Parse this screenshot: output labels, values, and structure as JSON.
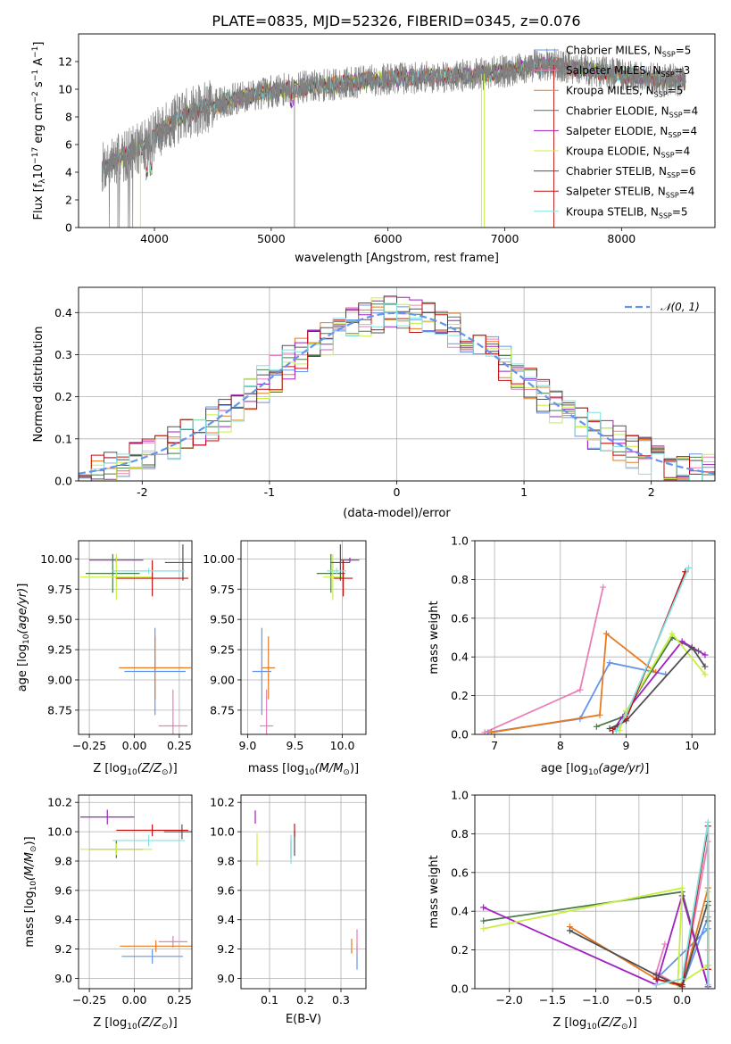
{
  "title": "PLATE=0835, MJD=52326, FIBERID=0345, z=0.076",
  "colors": {
    "grid": "#b0b0b0",
    "spectrum": "#808080",
    "normal_curve": "#6495ed"
  },
  "models": [
    {
      "key": "chabrier_miles",
      "legend": "Chabrier MILES, N",
      "nssp": "=5",
      "color": "#6495ed"
    },
    {
      "key": "salpeter_miles",
      "legend": "Salpeter MILES, N",
      "nssp": "=3",
      "color": "#e87fba"
    },
    {
      "key": "kroupa_miles",
      "legend": "Kroupa MILES, N",
      "nssp": "=5",
      "color": "#e67a20"
    },
    {
      "key": "chabrier_elodie",
      "legend": "Chabrier ELODIE, N",
      "nssp": "=4",
      "color": "#4a7a4a"
    },
    {
      "key": "salpeter_elodie",
      "legend": "Salpeter ELODIE, N",
      "nssp": "=4",
      "color": "#a020c0"
    },
    {
      "key": "kroupa_elodie",
      "legend": "Kroupa ELODIE, N",
      "nssp": "=4",
      "color": "#c8f040"
    },
    {
      "key": "chabrier_stelib",
      "legend": "Chabrier STELIB, N",
      "nssp": "=6",
      "color": "#505050"
    },
    {
      "key": "salpeter_stelib",
      "legend": "Salpeter STELIB, N",
      "nssp": "=4",
      "color": "#c01010"
    },
    {
      "key": "kroupa_stelib",
      "legend": "Kroupa STELIB, N",
      "nssp": "=5",
      "color": "#80e0e0"
    }
  ],
  "legend_subscript": "SSP",
  "chart_data": [
    {
      "id": "spectrum",
      "type": "line",
      "xlabel": "wavelength [Angstrom, rest frame]",
      "ylabel": "Flux [f",
      "ylabel_parts": [
        "Flux [f",
        "λ",
        "10",
        "−17",
        " erg cm",
        "−2",
        " s",
        "−1",
        " A",
        "−1",
        "]"
      ],
      "xlim": [
        3350,
        8800
      ],
      "ylim": [
        0,
        14
      ],
      "xticks": [
        4000,
        5000,
        6000,
        7000,
        8000
      ],
      "yticks": [
        0,
        2,
        4,
        6,
        8,
        10,
        12
      ],
      "continuum_x": [
        3550,
        3700,
        3900,
        4100,
        4300,
        4600,
        4900,
        5200,
        5500,
        5800,
        6100,
        6400,
        6700,
        7000,
        7200,
        7400,
        7600,
        7800,
        8000,
        8200,
        8400,
        8550
      ],
      "continuum_y": [
        4.3,
        5.0,
        5.9,
        7.3,
        8.3,
        9.1,
        9.7,
        10.1,
        10.3,
        10.6,
        10.8,
        10.9,
        11.0,
        11.3,
        11.6,
        11.8,
        11.5,
        11.3,
        11.0,
        10.9,
        10.7,
        10.6
      ],
      "spectrum_x_range": [
        3550,
        8550
      ],
      "legend": "upper right"
    },
    {
      "id": "residuals",
      "type": "histogram",
      "xlabel": "(data-model)/error",
      "ylabel": "Normed distribution",
      "xlim": [
        -2.5,
        2.5
      ],
      "ylim": [
        0,
        0.46
      ],
      "xticks": [
        -2,
        -1,
        0,
        1,
        2
      ],
      "yticks": [
        0.0,
        0.1,
        0.2,
        0.3,
        0.4
      ],
      "bin_width": 0.1,
      "grid": true,
      "legend_label": "𝒩(0, 1)",
      "normal": {
        "mu": 0,
        "sigma": 1
      }
    },
    {
      "id": "age_vs_Z",
      "type": "errorbar",
      "xlabel": "Z [log",
      "ylabel": "age  [log",
      "xlim": [
        -0.31,
        0.32
      ],
      "ylim": [
        8.55,
        10.15
      ],
      "xticks": [
        -0.25,
        0.0,
        0.25
      ],
      "xticklabels": [
        "−0.25",
        "0.00",
        "0.25"
      ],
      "yticks": [
        8.75,
        9.0,
        9.25,
        9.5,
        9.75,
        10.0
      ],
      "points": [
        {
          "m": 0,
          "x": 0.115,
          "y": 9.07,
          "xe": 0.17,
          "ye": 0.72
        },
        {
          "m": 1,
          "x": 0.215,
          "y": 8.62,
          "xe": 0.08,
          "ye": 0.6
        },
        {
          "m": 2,
          "x": 0.115,
          "y": 9.1,
          "xe": 0.2,
          "ye": 0.52
        },
        {
          "m": 3,
          "x": -0.12,
          "y": 9.88,
          "xe": 0.15,
          "ye": 0.32
        },
        {
          "m": 4,
          "x": -0.1,
          "y": 9.99,
          "xe": 0.15,
          "ye": 0.04
        },
        {
          "m": 5,
          "x": -0.1,
          "y": 9.85,
          "xe": 0.2,
          "ye": 0.38
        },
        {
          "m": 6,
          "x": 0.27,
          "y": 9.97,
          "xe": 0.1,
          "ye": 0.3
        },
        {
          "m": 7,
          "x": 0.1,
          "y": 9.84,
          "xe": 0.2,
          "ye": 0.3
        },
        {
          "m": 8,
          "x": 0.08,
          "y": 9.9,
          "xe": 0.2,
          "ye": 0.05
        }
      ]
    },
    {
      "id": "age_vs_mass",
      "type": "errorbar",
      "xlabel": "mass [log",
      "xlim": [
        8.93,
        10.25
      ],
      "ylim": [
        8.55,
        10.15
      ],
      "xticks": [
        9.0,
        9.5,
        10.0
      ],
      "yticks": [
        8.75,
        9.0,
        9.25,
        9.5,
        9.75,
        10.0
      ],
      "points": [
        {
          "m": 0,
          "x": 9.15,
          "y": 9.07,
          "xe": 0.1,
          "ye": 0.72
        },
        {
          "m": 1,
          "x": 9.2,
          "y": 8.62,
          "xe": 0.07,
          "ye": 0.6
        },
        {
          "m": 2,
          "x": 9.22,
          "y": 9.1,
          "xe": 0.07,
          "ye": 0.52
        },
        {
          "m": 3,
          "x": 9.88,
          "y": 9.88,
          "xe": 0.15,
          "ye": 0.32
        },
        {
          "m": 4,
          "x": 10.08,
          "y": 9.99,
          "xe": 0.1,
          "ye": 0.04
        },
        {
          "m": 5,
          "x": 9.9,
          "y": 9.85,
          "xe": 0.1,
          "ye": 0.38
        },
        {
          "m": 6,
          "x": 9.98,
          "y": 9.97,
          "xe": 0.1,
          "ye": 0.3
        },
        {
          "m": 7,
          "x": 10.01,
          "y": 9.84,
          "xe": 0.1,
          "ye": 0.3
        },
        {
          "m": 8,
          "x": 9.94,
          "y": 9.9,
          "xe": 0.1,
          "ye": 0.05
        }
      ]
    },
    {
      "id": "weight_vs_age",
      "type": "line",
      "xlabel": "age  [log",
      "ylabel": "mass weight",
      "xlim": [
        6.7,
        10.35
      ],
      "ylim": [
        0,
        1.0
      ],
      "xticks": [
        7,
        8,
        9,
        10
      ],
      "yticks": [
        0.0,
        0.2,
        0.4,
        0.6,
        0.8,
        1.0
      ],
      "grid": true,
      "series": [
        {
          "m": 0,
          "x": [
            6.9,
            8.3,
            8.75,
            9.6
          ],
          "y": [
            0.01,
            0.08,
            0.37,
            0.31
          ]
        },
        {
          "m": 1,
          "x": [
            6.85,
            8.3,
            8.65
          ],
          "y": [
            0.01,
            0.23,
            0.76
          ]
        },
        {
          "m": 2,
          "x": [
            6.95,
            8.6,
            8.7,
            9.45
          ],
          "y": [
            0.01,
            0.1,
            0.52,
            0.32
          ]
        },
        {
          "m": 3,
          "x": [
            8.55,
            8.95,
            9.7,
            10.1
          ],
          "y": [
            0.04,
            0.09,
            0.5,
            0.43
          ]
        },
        {
          "m": 4,
          "x": [
            8.8,
            9.0,
            9.85,
            10.2
          ],
          "y": [
            0.02,
            0.12,
            0.48,
            0.41
          ]
        },
        {
          "m": 5,
          "x": [
            8.9,
            9.0,
            9.7,
            10.2
          ],
          "y": [
            0.02,
            0.12,
            0.52,
            0.31
          ]
        },
        {
          "m": 6,
          "x": [
            8.75,
            9.0,
            10.0,
            10.2
          ],
          "y": [
            0.03,
            0.07,
            0.45,
            0.35
          ]
        },
        {
          "m": 7,
          "x": [
            8.8,
            9.0,
            9.9
          ],
          "y": [
            0.02,
            0.08,
            0.84
          ]
        },
        {
          "m": 8,
          "x": [
            8.85,
            9.0,
            9.95
          ],
          "y": [
            0.02,
            0.1,
            0.86
          ]
        }
      ]
    },
    {
      "id": "mass_vs_Z",
      "type": "errorbar",
      "xlabel": "Z [log",
      "ylabel": "mass [log",
      "xlim": [
        -0.31,
        0.32
      ],
      "ylim": [
        8.93,
        10.25
      ],
      "xticks": [
        -0.25,
        0.0,
        0.25
      ],
      "xticklabels": [
        "−0.25",
        "0.00",
        "0.25"
      ],
      "yticks": [
        9.0,
        9.2,
        9.4,
        9.6,
        9.8,
        10.0,
        10.2
      ],
      "points": [
        {
          "m": 0,
          "x": 0.1,
          "y": 9.15,
          "xe": 0.17,
          "ye": 0.1
        },
        {
          "m": 1,
          "x": 0.215,
          "y": 9.25,
          "xe": 0.08,
          "ye": 0.08
        },
        {
          "m": 2,
          "x": 0.12,
          "y": 9.22,
          "xe": 0.2,
          "ye": 0.08
        },
        {
          "m": 3,
          "x": -0.1,
          "y": 9.88,
          "xe": 0.15,
          "ye": 0.12
        },
        {
          "m": 4,
          "x": -0.15,
          "y": 10.1,
          "xe": 0.15,
          "ye": 0.1
        },
        {
          "m": 5,
          "x": -0.1,
          "y": 9.88,
          "xe": 0.2,
          "ye": 0.08
        },
        {
          "m": 6,
          "x": 0.265,
          "y": 10.0,
          "xe": 0.1,
          "ye": 0.1
        },
        {
          "m": 7,
          "x": 0.1,
          "y": 10.01,
          "xe": 0.2,
          "ye": 0.08
        },
        {
          "m": 8,
          "x": 0.08,
          "y": 9.94,
          "xe": 0.2,
          "ye": 0.08
        }
      ]
    },
    {
      "id": "mass_vs_ebv",
      "type": "errorbar",
      "xlabel": "E(B-V)",
      "xlim": [
        0.02,
        0.37
      ],
      "ylim": [
        8.93,
        10.25
      ],
      "xticks": [
        0.1,
        0.2,
        0.3
      ],
      "yticks": [
        9.0,
        9.2,
        9.4,
        9.6,
        9.8,
        10.0,
        10.2
      ],
      "points": [
        {
          "m": 0,
          "x": 0.345,
          "y": 9.15,
          "xe": 0,
          "ye": 0.18
        },
        {
          "m": 1,
          "x": 0.345,
          "y": 9.25,
          "xe": 0,
          "ye": 0.17
        },
        {
          "m": 2,
          "x": 0.33,
          "y": 9.22,
          "xe": 0,
          "ye": 0.1
        },
        {
          "m": 3,
          "x": 0.16,
          "y": 9.88,
          "xe": 0,
          "ye": 0.12
        },
        {
          "m": 4,
          "x": 0.06,
          "y": 10.1,
          "xe": 0,
          "ye": 0.09
        },
        {
          "m": 5,
          "x": 0.065,
          "y": 9.88,
          "xe": 0,
          "ye": 0.22
        },
        {
          "m": 6,
          "x": 0.17,
          "y": 9.92,
          "xe": 0,
          "ye": 0.17
        },
        {
          "m": 7,
          "x": 0.17,
          "y": 10.01,
          "xe": 0,
          "ye": 0.09
        },
        {
          "m": 8,
          "x": 0.16,
          "y": 9.88,
          "xe": 0,
          "ye": 0.2
        }
      ]
    },
    {
      "id": "weight_vs_Z",
      "type": "line",
      "xlabel": "Z [log",
      "ylabel": "mass weight",
      "xlim": [
        -2.4,
        0.38
      ],
      "ylim": [
        0,
        1.0
      ],
      "xticks": [
        -2.0,
        -1.5,
        -1.0,
        -0.5,
        0.0
      ],
      "xticklabels": [
        "−2.0",
        "−1.5",
        "−1.0",
        "−0.5",
        "0.0"
      ],
      "yticks": [
        0.0,
        0.2,
        0.4,
        0.6,
        0.8,
        1.0
      ],
      "grid": true,
      "series": [
        {
          "m": 0,
          "x": [
            -0.3,
            0.3,
            0.3,
            0.0
          ],
          "y": [
            0.05,
            0.31,
            0.37,
            0.01
          ]
        },
        {
          "m": 1,
          "x": [
            -0.2,
            -0.3,
            0.0,
            0.3,
            0.3
          ],
          "y": [
            0.23,
            0.08,
            0.01,
            0.76,
            0.2
          ]
        },
        {
          "m": 2,
          "x": [
            -1.3,
            -0.3,
            0.0,
            0.3,
            0.3
          ],
          "y": [
            0.32,
            0.05,
            0.01,
            0.52,
            0.1
          ]
        },
        {
          "m": 3,
          "x": [
            -2.3,
            0.0,
            0.3,
            0.3
          ],
          "y": [
            0.35,
            0.5,
            0.01,
            0.43
          ]
        },
        {
          "m": 4,
          "x": [
            -2.3,
            -0.3,
            0.0,
            0.3,
            0.3
          ],
          "y": [
            0.42,
            0.02,
            0.48,
            0.01,
            0.12
          ]
        },
        {
          "m": 5,
          "x": [
            -2.3,
            0.0,
            -0.05,
            0.3,
            0.3
          ],
          "y": [
            0.31,
            0.52,
            0.02,
            0.12,
            0.5
          ]
        },
        {
          "m": 6,
          "x": [
            -1.3,
            -0.3,
            0.0,
            0.3,
            0.3
          ],
          "y": [
            0.3,
            0.07,
            0.01,
            0.45,
            0.35
          ]
        },
        {
          "m": 7,
          "x": [
            -0.3,
            0.0,
            0.3,
            0.3
          ],
          "y": [
            0.05,
            0.02,
            0.84,
            0.1
          ]
        },
        {
          "m": 8,
          "x": [
            -0.3,
            0.0,
            0.3,
            0.3
          ],
          "y": [
            0.02,
            0.05,
            0.86,
            0.02
          ]
        }
      ]
    }
  ]
}
